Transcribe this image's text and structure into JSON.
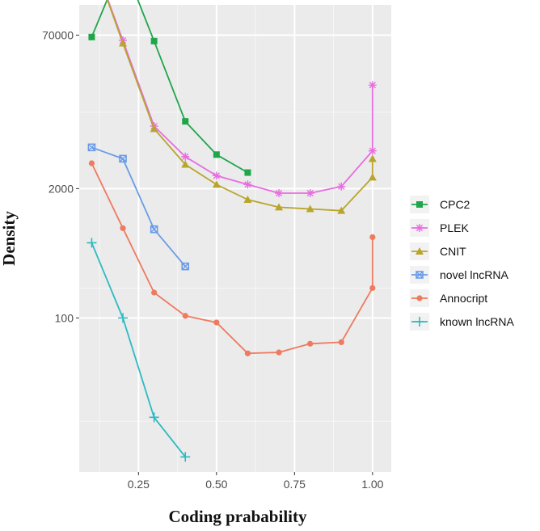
{
  "chart_data": {
    "type": "line",
    "title": "",
    "xlabel": "Coding prabability",
    "ylabel": "Density",
    "xlim": [
      0.06,
      1.06
    ],
    "ylim_log10": [
      0.45,
      5.15
    ],
    "y_scale": "log",
    "x_ticks": [
      {
        "value": 0.25,
        "label": "0.25"
      },
      {
        "value": 0.5,
        "label": "0.50"
      },
      {
        "value": 0.75,
        "label": "0.75"
      },
      {
        "value": 1.0,
        "label": "1.00"
      }
    ],
    "y_ticks": [
      {
        "value": 100,
        "label": "100"
      },
      {
        "value": 2000,
        "label": "2000"
      },
      {
        "value": 70000,
        "label": "70000"
      }
    ],
    "grid": true,
    "legend_position": "right",
    "series": [
      {
        "name": "CPC2",
        "color": "#1fa64a",
        "marker": "square",
        "x": [
          0.1,
          0.2,
          0.3,
          0.4,
          0.5,
          0.6
        ],
        "y": [
          67000,
          380000,
          61000,
          9500,
          4400,
          2900
        ]
      },
      {
        "name": "PLEK",
        "color": "#e86de0",
        "marker": "asterisk",
        "x": [
          0.1,
          0.2,
          0.3,
          0.4,
          0.5,
          0.6,
          0.7,
          0.8,
          0.9,
          1.0,
          1.0
        ],
        "y": [
          440000,
          62000,
          8500,
          4200,
          2700,
          2200,
          1800,
          1800,
          2100,
          4800,
          22000
        ]
      },
      {
        "name": "CNIT",
        "color": "#b8a52c",
        "marker": "triangle",
        "x": [
          0.1,
          0.2,
          0.3,
          0.4,
          0.5,
          0.6,
          0.7,
          0.8,
          0.9,
          1.0,
          1.0
        ],
        "y": [
          440000,
          58000,
          8000,
          3500,
          2200,
          1550,
          1300,
          1250,
          1200,
          2600,
          4000
        ]
      },
      {
        "name": "novel lncRNA",
        "color": "#6a9be8",
        "marker": "square-x",
        "x": [
          0.1,
          0.2,
          0.3,
          0.4
        ],
        "y": [
          5200,
          4000,
          780,
          330
        ]
      },
      {
        "name": "Annocript",
        "color": "#ee7a60",
        "marker": "circle",
        "x": [
          0.1,
          0.2,
          0.3,
          0.4,
          0.5,
          0.6,
          0.7,
          0.8,
          0.9,
          1.0,
          1.0
        ],
        "y": [
          3600,
          800,
          180,
          105,
          90,
          44,
          45,
          55,
          57,
          200,
          650
        ]
      },
      {
        "name": "known lncRNA",
        "color": "#2bbac2",
        "marker": "plus",
        "x": [
          0.1,
          0.2,
          0.3,
          0.4
        ],
        "y": [
          570,
          100,
          10,
          4
        ]
      }
    ]
  }
}
